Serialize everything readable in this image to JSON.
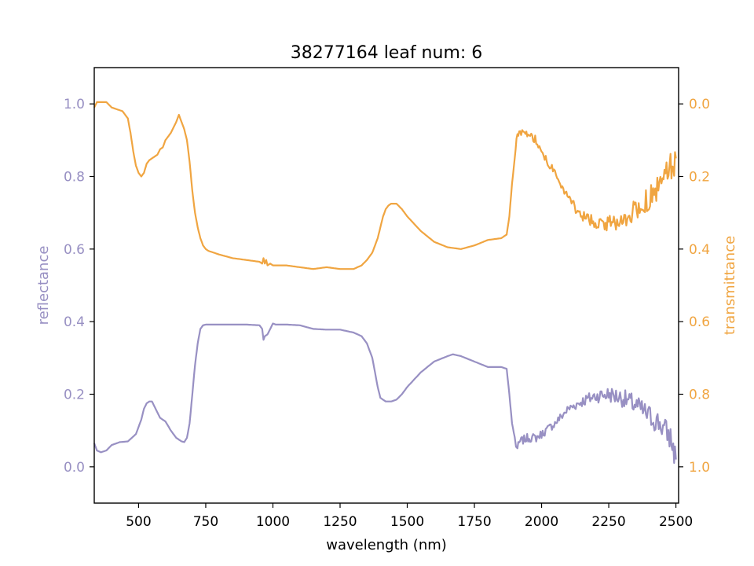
{
  "chart_data": {
    "type": "line",
    "title": "38277164 leaf num: 6",
    "xlabel": "wavelength (nm)",
    "xlim": [
      335,
      2510
    ],
    "xticks": [
      500,
      750,
      1000,
      1250,
      1500,
      1750,
      2000,
      2250,
      2500
    ],
    "left_axis": {
      "label": "reflectance",
      "ylim": [
        -0.1,
        1.1
      ],
      "ticks": [
        0.0,
        0.2,
        0.4,
        0.6,
        0.8,
        1.0
      ],
      "tick_labels": [
        "0.0",
        "0.2",
        "0.4",
        "0.6",
        "0.8",
        "1.0"
      ],
      "color": "#9890c3"
    },
    "right_axis": {
      "label": "transmittance",
      "ylim": [
        -0.1,
        1.1
      ],
      "inverted": true,
      "ticks": [
        0.0,
        0.2,
        0.4,
        0.6,
        0.8,
        1.0
      ],
      "tick_labels": [
        "0.0",
        "0.2",
        "0.4",
        "0.6",
        "0.8",
        "1.0"
      ],
      "color": "#f0a541"
    },
    "grid": false,
    "series": [
      {
        "axis": "left",
        "color": "#9890c3",
        "x": [
          335,
          345,
          360,
          380,
          400,
          430,
          460,
          490,
          510,
          520,
          530,
          540,
          550,
          560,
          570,
          580,
          600,
          620,
          640,
          660,
          670,
          680,
          690,
          700,
          710,
          720,
          730,
          740,
          750,
          760,
          780,
          800,
          850,
          900,
          950,
          960,
          965,
          970,
          980,
          990,
          1000,
          1010,
          1050,
          1100,
          1150,
          1200,
          1250,
          1300,
          1330,
          1350,
          1370,
          1380,
          1390,
          1400,
          1420,
          1440,
          1460,
          1480,
          1500,
          1550,
          1600,
          1650,
          1670,
          1700,
          1750,
          1800,
          1850,
          1870,
          1880,
          1890,
          1900,
          1905,
          1910,
          1920,
          1950,
          1980,
          2000,
          2050,
          2100,
          2150,
          2200,
          2250,
          2300,
          2350,
          2400,
          2420,
          2440,
          2460,
          2480,
          2490,
          2500
        ],
        "y": [
          0.065,
          0.045,
          0.04,
          0.045,
          0.06,
          0.068,
          0.07,
          0.09,
          0.13,
          0.16,
          0.175,
          0.18,
          0.18,
          0.165,
          0.15,
          0.135,
          0.125,
          0.1,
          0.08,
          0.07,
          0.068,
          0.08,
          0.12,
          0.2,
          0.28,
          0.34,
          0.38,
          0.39,
          0.392,
          0.392,
          0.392,
          0.392,
          0.392,
          0.392,
          0.39,
          0.38,
          0.35,
          0.36,
          0.365,
          0.38,
          0.395,
          0.392,
          0.392,
          0.39,
          0.38,
          0.378,
          0.378,
          0.37,
          0.36,
          0.34,
          0.3,
          0.26,
          0.22,
          0.19,
          0.18,
          0.18,
          0.185,
          0.2,
          0.22,
          0.26,
          0.29,
          0.305,
          0.31,
          0.305,
          0.29,
          0.275,
          0.275,
          0.27,
          0.2,
          0.12,
          0.08,
          0.06,
          0.05,
          0.07,
          0.08,
          0.08,
          0.09,
          0.12,
          0.16,
          0.18,
          0.195,
          0.2,
          0.19,
          0.17,
          0.14,
          0.13,
          0.12,
          0.1,
          0.08,
          0.05,
          0.02
        ],
        "noise_start": 1900,
        "noise_amp": 0.012
      },
      {
        "axis": "right",
        "color": "#f0a541",
        "x": [
          335,
          345,
          360,
          380,
          400,
          420,
          440,
          460,
          470,
          480,
          490,
          500,
          510,
          520,
          530,
          540,
          550,
          560,
          570,
          580,
          590,
          600,
          620,
          640,
          650,
          660,
          670,
          680,
          690,
          700,
          710,
          720,
          730,
          740,
          750,
          760,
          780,
          800,
          850,
          900,
          950,
          960,
          965,
          970,
          975,
          980,
          990,
          1000,
          1010,
          1050,
          1100,
          1150,
          1200,
          1250,
          1300,
          1330,
          1350,
          1370,
          1380,
          1390,
          1400,
          1410,
          1420,
          1430,
          1440,
          1460,
          1480,
          1500,
          1550,
          1600,
          1650,
          1700,
          1750,
          1800,
          1850,
          1870,
          1880,
          1890,
          1900,
          1910,
          1920,
          1940,
          1950,
          1980,
          2000,
          2050,
          2100,
          2150,
          2200,
          2250,
          2300,
          2350,
          2400,
          2450,
          2480,
          2490,
          2500
        ],
        "y": [
          0.01,
          -0.005,
          -0.005,
          -0.005,
          0.01,
          0.015,
          0.02,
          0.04,
          0.08,
          0.13,
          0.17,
          0.19,
          0.2,
          0.19,
          0.165,
          0.155,
          0.15,
          0.145,
          0.14,
          0.125,
          0.12,
          0.1,
          0.08,
          0.05,
          0.03,
          0.05,
          0.07,
          0.1,
          0.16,
          0.24,
          0.3,
          0.34,
          0.37,
          0.39,
          0.4,
          0.405,
          0.41,
          0.415,
          0.425,
          0.43,
          0.435,
          0.44,
          0.425,
          0.44,
          0.43,
          0.445,
          0.44,
          0.445,
          0.445,
          0.445,
          0.45,
          0.455,
          0.45,
          0.455,
          0.455,
          0.445,
          0.43,
          0.41,
          0.39,
          0.37,
          0.34,
          0.31,
          0.29,
          0.28,
          0.275,
          0.275,
          0.29,
          0.31,
          0.35,
          0.38,
          0.395,
          0.4,
          0.39,
          0.375,
          0.37,
          0.36,
          0.31,
          0.22,
          0.15,
          0.08,
          0.075,
          0.085,
          0.08,
          0.1,
          0.13,
          0.19,
          0.26,
          0.31,
          0.325,
          0.33,
          0.32,
          0.29,
          0.26,
          0.22,
          0.17,
          0.17,
          0.15
        ],
        "noise_start": 1900,
        "noise_amp": 0.012
      }
    ]
  }
}
